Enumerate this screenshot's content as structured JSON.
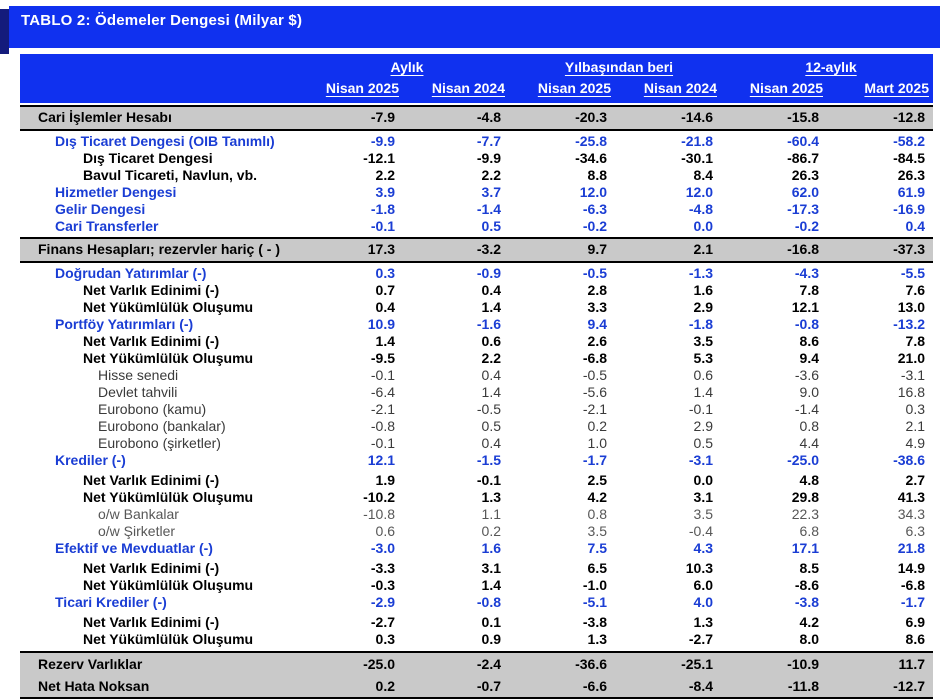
{
  "title": "TABLO 2: Ödemeler Dengesi (Milyar $)",
  "colors": {
    "header_blue": "#1031ef",
    "title_shadow_navy": "#141b7c",
    "section_gray": "#c9c9c9",
    "category_blue_text": "#1a3dd4"
  },
  "table": {
    "col_groups": [
      {
        "label": "Aylık",
        "span": 2
      },
      {
        "label": "Yılbaşından beri",
        "span": 2
      },
      {
        "label": "12-aylık",
        "span": 2
      }
    ],
    "columns": [
      "Nisan 2025",
      "Nisan 2024",
      "Nisan 2025",
      "Nisan 2024",
      "Nisan 2025",
      "Mart 2025"
    ],
    "rows": [
      {
        "label": "Cari İşlemler Hesabı",
        "style": "main",
        "indent": 0,
        "values": [
          "-7.9",
          "-4.8",
          "-20.3",
          "-14.6",
          "-15.8",
          "-12.8"
        ]
      },
      {
        "label": "Dış Ticaret Dengesi (OIB Tanımlı)",
        "style": "category",
        "indent": 1,
        "values": [
          "-9.9",
          "-7.7",
          "-25.8",
          "-21.8",
          "-60.4",
          "-58.2"
        ]
      },
      {
        "label": "Dış Ticaret Dengesi",
        "style": "subitem",
        "indent": 2,
        "values": [
          "-12.1",
          "-9.9",
          "-34.6",
          "-30.1",
          "-86.7",
          "-84.5"
        ]
      },
      {
        "label": "Bavul Ticareti, Navlun, vb.",
        "style": "subitem",
        "indent": 2,
        "values": [
          "2.2",
          "2.2",
          "8.8",
          "8.4",
          "26.3",
          "26.3"
        ]
      },
      {
        "label": "Hizmetler Dengesi",
        "style": "category",
        "indent": 1,
        "values": [
          "3.9",
          "3.7",
          "12.0",
          "12.0",
          "62.0",
          "61.9"
        ]
      },
      {
        "label": "Gelir Dengesi",
        "style": "category",
        "indent": 1,
        "values": [
          "-1.8",
          "-1.4",
          "-6.3",
          "-4.8",
          "-17.3",
          "-16.9"
        ]
      },
      {
        "label": "Cari Transferler",
        "style": "category",
        "indent": 1,
        "values": [
          "-0.1",
          "0.5",
          "-0.2",
          "0.0",
          "-0.2",
          "0.4"
        ]
      },
      {
        "label": "Finans Hesapları; rezervler hariç ( - )",
        "style": "main",
        "indent": 0,
        "values": [
          "17.3",
          "-3.2",
          "9.7",
          "2.1",
          "-16.8",
          "-37.3"
        ]
      },
      {
        "label": "Doğrudan Yatırımlar (-)",
        "style": "category",
        "indent": 1,
        "values": [
          "0.3",
          "-0.9",
          "-0.5",
          "-1.3",
          "-4.3",
          "-5.5"
        ]
      },
      {
        "label": "Net Varlık Edinimi (-)",
        "style": "subitem",
        "indent": 2,
        "values": [
          "0.7",
          "0.4",
          "2.8",
          "1.6",
          "7.8",
          "7.6"
        ]
      },
      {
        "label": "Net Yükümlülük Oluşumu",
        "style": "subitem",
        "indent": 2,
        "values": [
          "0.4",
          "1.4",
          "3.3",
          "2.9",
          "12.1",
          "13.0"
        ]
      },
      {
        "label": "Portföy Yatırımları (-)",
        "style": "category",
        "indent": 1,
        "values": [
          "10.9",
          "-1.6",
          "9.4",
          "-1.8",
          "-0.8",
          "-13.2"
        ]
      },
      {
        "label": "Net Varlık Edinimi (-)",
        "style": "subitem",
        "indent": 2,
        "values": [
          "1.4",
          "0.6",
          "2.6",
          "3.5",
          "8.6",
          "7.8"
        ]
      },
      {
        "label": "Net Yükümlülük Oluşumu",
        "style": "subitem",
        "indent": 2,
        "values": [
          "-9.5",
          "2.2",
          "-6.8",
          "5.3",
          "9.4",
          "21.0"
        ]
      },
      {
        "label": "Hisse senedi",
        "style": "detail",
        "indent": 3,
        "values": [
          "-0.1",
          "0.4",
          "-0.5",
          "0.6",
          "-3.6",
          "-3.1"
        ]
      },
      {
        "label": "Devlet tahvili",
        "style": "detail",
        "indent": 3,
        "values": [
          "-6.4",
          "1.4",
          "-5.6",
          "1.4",
          "9.0",
          "16.8"
        ]
      },
      {
        "label": "Eurobono (kamu)",
        "style": "detail",
        "indent": 3,
        "values": [
          "-2.1",
          "-0.5",
          "-2.1",
          "-0.1",
          "-1.4",
          "0.3"
        ]
      },
      {
        "label": "Eurobono (bankalar)",
        "style": "detail",
        "indent": 3,
        "values": [
          "-0.8",
          "0.5",
          "0.2",
          "2.9",
          "0.8",
          "2.1"
        ]
      },
      {
        "label": "Eurobono (şirketler)",
        "style": "detail",
        "indent": 3,
        "values": [
          "-0.1",
          "0.4",
          "1.0",
          "0.5",
          "4.4",
          "4.9"
        ]
      },
      {
        "label": "Krediler (-)",
        "style": "category",
        "indent": 1,
        "values": [
          "12.1",
          "-1.5",
          "-1.7",
          "-3.1",
          "-25.0",
          "-38.6"
        ]
      },
      {
        "label": "Net Varlık Edinimi (-)",
        "style": "subitem",
        "indent": 2,
        "gap": true,
        "values": [
          "1.9",
          "-0.1",
          "2.5",
          "0.0",
          "4.8",
          "2.7"
        ]
      },
      {
        "label": "Net Yükümlülük Oluşumu",
        "style": "subitem",
        "indent": 2,
        "values": [
          "-10.2",
          "1.3",
          "4.2",
          "3.1",
          "29.8",
          "41.3"
        ]
      },
      {
        "label": "o/w Bankalar",
        "style": "detail-light",
        "indent": 3,
        "values": [
          "-10.8",
          "1.1",
          "0.8",
          "3.5",
          "22.3",
          "34.3"
        ]
      },
      {
        "label": "o/w Şirketler",
        "style": "detail-light",
        "indent": 3,
        "values": [
          "0.6",
          "0.2",
          "3.5",
          "-0.4",
          "6.8",
          "6.3"
        ]
      },
      {
        "label": "Efektif ve Mevduatlar (-)",
        "style": "category",
        "indent": 1,
        "values": [
          "-3.0",
          "1.6",
          "7.5",
          "4.3",
          "17.1",
          "21.8"
        ]
      },
      {
        "label": "Net Varlık Edinimi (-)",
        "style": "subitem",
        "indent": 2,
        "gap": true,
        "values": [
          "-3.3",
          "3.1",
          "6.5",
          "10.3",
          "8.5",
          "14.9"
        ]
      },
      {
        "label": "Net Yükümlülük Oluşumu",
        "style": "subitem",
        "indent": 2,
        "values": [
          "-0.3",
          "1.4",
          "-1.0",
          "6.0",
          "-8.6",
          "-6.8"
        ]
      },
      {
        "label": "Ticari Krediler (-)",
        "style": "category",
        "indent": 1,
        "values": [
          "-2.9",
          "-0.8",
          "-5.1",
          "4.0",
          "-3.8",
          "-1.7"
        ]
      },
      {
        "label": "Net Varlık Edinimi (-)",
        "style": "subitem",
        "indent": 2,
        "gap": true,
        "values": [
          "-2.7",
          "0.1",
          "-3.8",
          "1.3",
          "4.2",
          "6.9"
        ]
      },
      {
        "label": "Net Yükümlülük Oluşumu",
        "style": "subitem",
        "indent": 2,
        "values": [
          "0.3",
          "0.9",
          "1.3",
          "-2.7",
          "8.0",
          "8.6"
        ]
      },
      {
        "label": "Rezerv Varlıklar",
        "style": "footer first",
        "indent": 0,
        "values": [
          "-25.0",
          "-2.4",
          "-36.6",
          "-25.1",
          "-10.9",
          "11.7"
        ]
      },
      {
        "label": "Net Hata Noksan",
        "style": "footer last",
        "indent": 0,
        "values": [
          "0.2",
          "-0.7",
          "-6.6",
          "-8.4",
          "-11.8",
          "-12.7"
        ]
      }
    ]
  }
}
